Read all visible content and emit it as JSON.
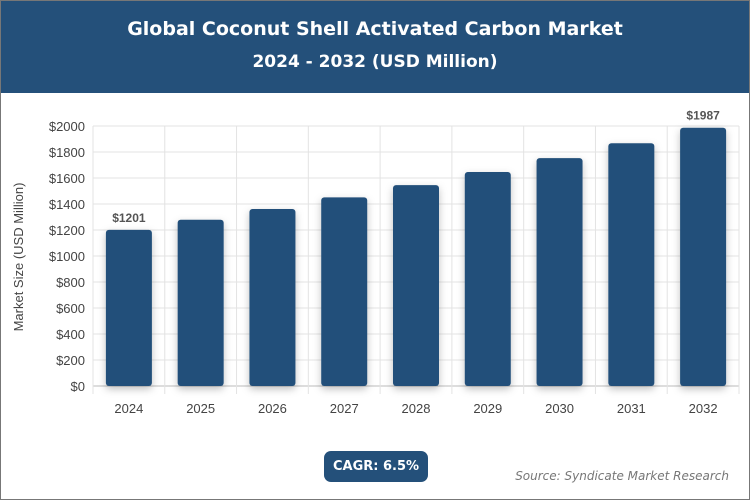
{
  "header": {
    "title": "Global Coconut Shell Activated Carbon Market",
    "subtitle": "2024 - 2032 (USD Million)"
  },
  "chart_data": {
    "type": "bar",
    "categories": [
      "2024",
      "2025",
      "2026",
      "2027",
      "2028",
      "2029",
      "2030",
      "2031",
      "2032"
    ],
    "values": [
      1201,
      1279,
      1362,
      1451,
      1545,
      1646,
      1753,
      1867,
      1987
    ],
    "data_labels": {
      "0": "$1201",
      "8": "$1987"
    },
    "ylabel": "Market Size (USD Million)",
    "xlabel": "",
    "ylim": [
      0,
      2000
    ],
    "yticks": [
      0,
      200,
      400,
      600,
      800,
      1000,
      1200,
      1400,
      1600,
      1800,
      2000
    ],
    "ytick_prefix": "$",
    "grid": true,
    "bar_color": "#24507a"
  },
  "footer": {
    "cagr": "CAGR: 6.5%",
    "source": "Source: Syndicate Market Research"
  }
}
